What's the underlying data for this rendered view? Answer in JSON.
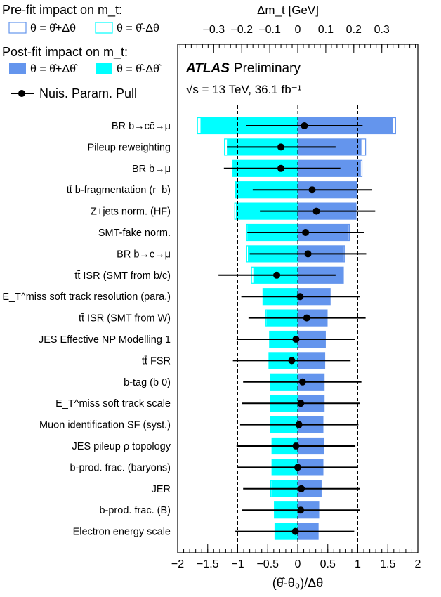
{
  "chart_data": {
    "type": "bar",
    "title": "",
    "experiment": "ATLAS",
    "experiment_suffix": "Preliminary",
    "energy_label": "√s = 13 TeV, 36.1 fb⁻¹",
    "xlabel": "(θ̂-θ₀)/Δθ",
    "xlim": [
      -2,
      2
    ],
    "xticks": [
      "−2",
      "−1.5",
      "−1",
      "−0.5",
      "0",
      "0.5",
      "1",
      "1.5",
      "2"
    ],
    "top_axis_label": "Δm_t [GeV]",
    "top_axis_scale": "0.3 GeV per 1.4 units of pull",
    "top_ticks": [
      "−0.3",
      "−0.2",
      "−0.1",
      "0",
      "0.1",
      "0.2",
      "0.3"
    ],
    "legend": {
      "prefit_title": "Pre-fit impact on m_t:",
      "prefit_up": "θ = θ̂+Δθ",
      "prefit_down": "θ = θ̂-Δθ",
      "postfit_title": "Post-fit impact on m_t:",
      "postfit_up": "θ = θ̂+Δθ̂",
      "postfit_down": "θ = θ̂-Δθ̂",
      "pull": "Nuis. Param. Pull"
    },
    "colors": {
      "up": "#6495ED",
      "down": "#00FFFF",
      "pull": "#000000"
    },
    "categories": [
      "BR b→cc̄→μ",
      "Pileup reweighting",
      "BR b→μ",
      "tt̄ b-fragmentation (r_b)",
      "Z+jets norm. (HF)",
      "SMT-fake norm.",
      "BR b→c→μ",
      "tt̄ ISR (SMT from b/c)",
      "E_T^miss soft track resolution (para.)",
      "tt̄ ISR (SMT from W)",
      "JES Effective NP Modelling 1",
      "tt̄ FSR",
      "b-tag (b 0)",
      "E_T^miss soft track scale",
      "Muon identification SF (syst.)",
      "JES pileup ρ topology",
      "b-prod. frac. (baryons)",
      "JER",
      "b-prod. frac. (B)",
      "Electron energy scale"
    ],
    "series": [
      {
        "name": "Post-fit impact on m_t: θ = θ̂+Δθ̂",
        "values": [
          1.58,
          1.06,
          1.05,
          0.98,
          0.97,
          0.85,
          0.77,
          0.75,
          0.54,
          0.48,
          0.46,
          0.45,
          0.44,
          0.44,
          0.42,
          0.43,
          0.42,
          0.39,
          0.35,
          0.34
        ]
      },
      {
        "name": "Post-fit impact on m_t: θ = θ̂-Δθ̂",
        "values": [
          -1.62,
          -1.18,
          -1.08,
          -1.04,
          -1.03,
          -0.84,
          -0.83,
          -0.74,
          -0.58,
          -0.52,
          -0.47,
          -0.48,
          -0.46,
          -0.46,
          -0.46,
          -0.43,
          -0.43,
          -0.44,
          -0.39,
          -0.38
        ]
      },
      {
        "name": "Pre-fit impact on m_t: θ = θ̂+Δθ",
        "values": [
          1.63,
          1.13,
          1.07,
          0.98,
          0.97,
          0.86,
          0.78,
          0.76,
          0.54,
          0.49,
          0.46,
          0.45,
          0.44,
          0.44,
          0.42,
          0.43,
          0.42,
          0.39,
          0.35,
          0.34
        ]
      },
      {
        "name": "Pre-fit impact on m_t: θ = θ̂-Δθ",
        "values": [
          -1.67,
          -1.22,
          -1.08,
          -1.04,
          -1.05,
          -0.85,
          -0.85,
          -0.77,
          -0.58,
          -0.53,
          -0.47,
          -0.48,
          -0.46,
          -0.46,
          -0.46,
          -0.43,
          -0.43,
          -0.45,
          -0.39,
          -0.38
        ]
      }
    ],
    "pulls": {
      "name": "Nuis. Param. Pull",
      "center": [
        0.11,
        -0.28,
        -0.28,
        0.24,
        0.31,
        0.13,
        0.17,
        -0.35,
        0.04,
        0.15,
        -0.03,
        -0.1,
        0.08,
        0.05,
        0.02,
        -0.03,
        0.0,
        0.06,
        0.05,
        -0.04
      ],
      "low": [
        -0.86,
        -1.18,
        -1.23,
        -0.75,
        -0.63,
        -0.84,
        -0.8,
        -1.32,
        -0.94,
        -0.82,
        -1.02,
        -1.08,
        -0.91,
        -0.93,
        -0.96,
        -1.02,
        -1.0,
        -0.91,
        -0.93,
        -1.04
      ],
      "high": [
        1.08,
        0.63,
        0.71,
        1.24,
        1.29,
        1.11,
        1.14,
        0.63,
        1.04,
        1.13,
        0.95,
        0.88,
        1.06,
        1.04,
        1.01,
        0.96,
        0.99,
        1.04,
        1.03,
        0.94
      ]
    },
    "reference_lines": [
      -1,
      0,
      1
    ]
  }
}
